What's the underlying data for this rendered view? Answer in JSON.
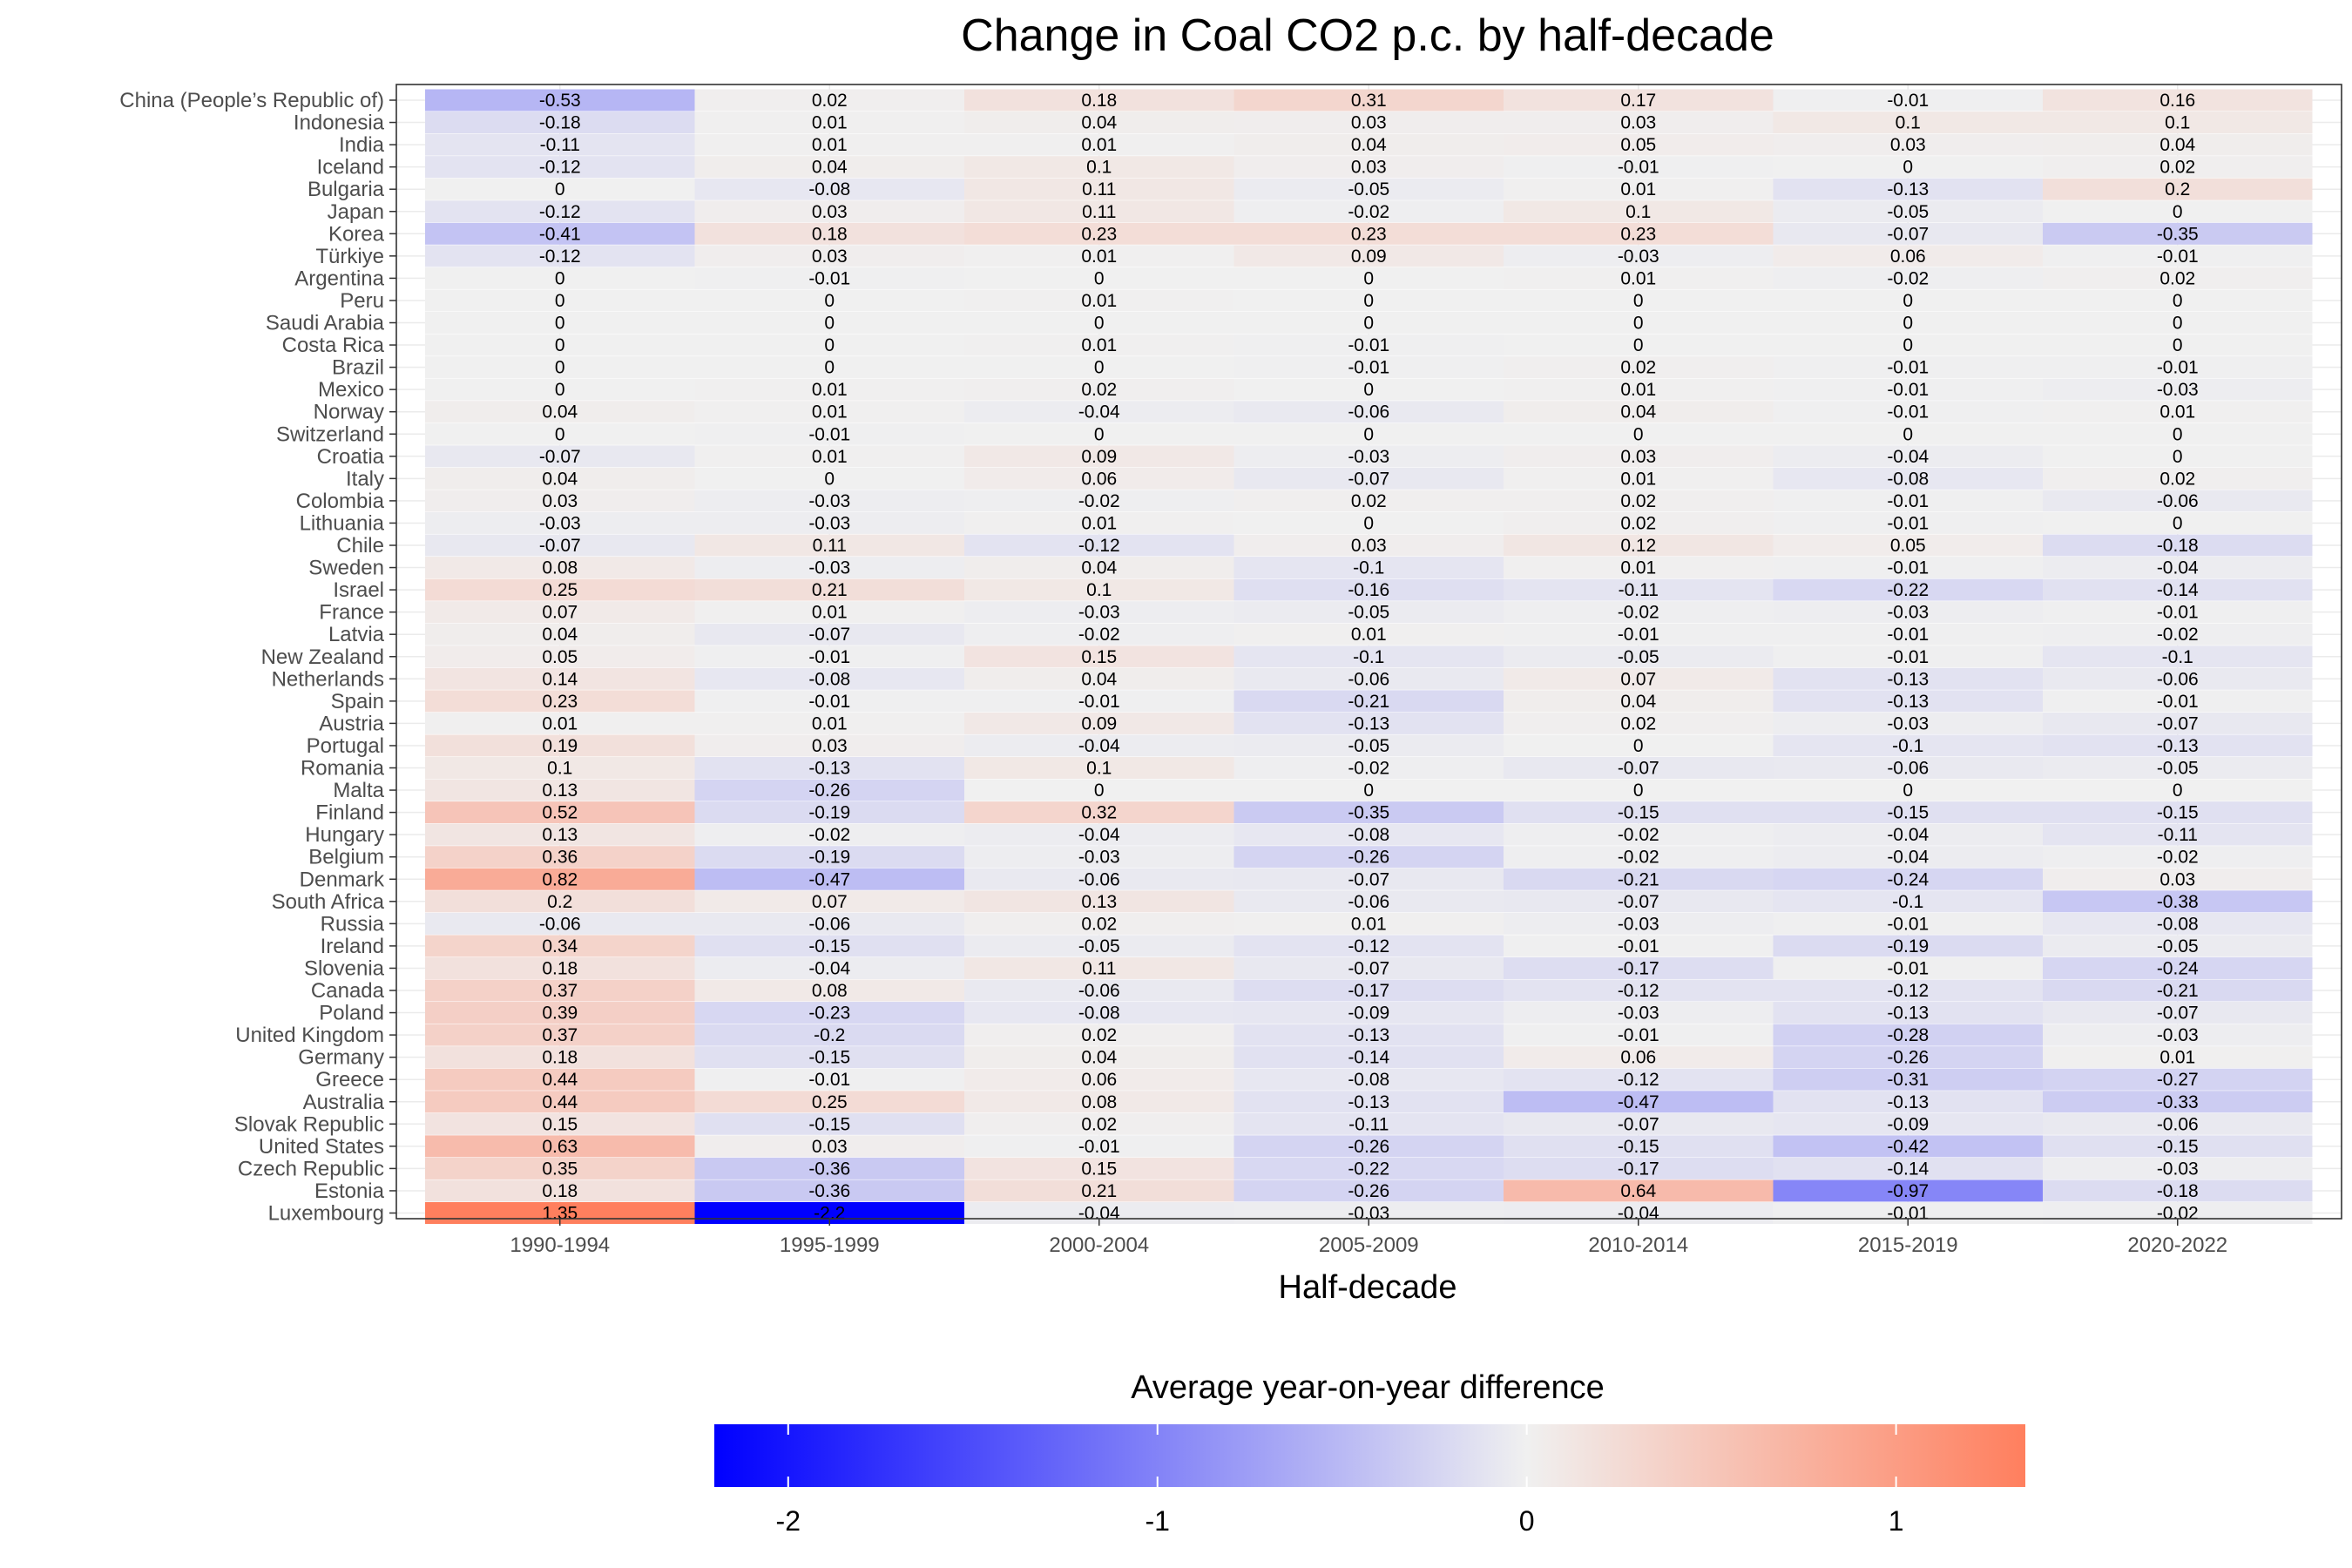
{
  "chart_data": {
    "type": "heatmap",
    "title": "Change in Coal CO2 p.c. by half-decade",
    "xlabel": "Half-decade",
    "ylabel": "",
    "legend_title": "Average year-on-year difference",
    "legend_ticks": [
      "-2",
      "-1",
      "0",
      "1"
    ],
    "legend_placement": "bottom",
    "color_scale": {
      "low": "#0000ff",
      "mid": "#f0f0f0",
      "high": "#ff7f5e",
      "min": -2.2,
      "max": 1.35
    },
    "x": [
      "1990-1994",
      "1995-1999",
      "2000-2004",
      "2005-2009",
      "2010-2014",
      "2015-2019",
      "2020-2022"
    ],
    "rows": [
      {
        "country": "China (People’s Republic of)",
        "values": [
          -0.53,
          0.02,
          0.18,
          0.31,
          0.17,
          -0.01,
          0.16
        ]
      },
      {
        "country": "Indonesia",
        "values": [
          -0.18,
          0.01,
          0.04,
          0.03,
          0.03,
          0.1,
          0.1
        ]
      },
      {
        "country": "India",
        "values": [
          -0.11,
          0.01,
          0.01,
          0.04,
          0.05,
          0.03,
          0.04
        ]
      },
      {
        "country": "Iceland",
        "values": [
          -0.12,
          0.04,
          0.1,
          0.03,
          -0.01,
          0,
          0.02
        ]
      },
      {
        "country": "Bulgaria",
        "values": [
          0,
          -0.08,
          0.11,
          -0.05,
          0.01,
          -0.13,
          0.2
        ]
      },
      {
        "country": "Japan",
        "values": [
          -0.12,
          0.03,
          0.11,
          -0.02,
          0.1,
          -0.05,
          0
        ]
      },
      {
        "country": "Korea",
        "values": [
          -0.41,
          0.18,
          0.23,
          0.23,
          0.23,
          -0.07,
          -0.35
        ]
      },
      {
        "country": "Türkiye",
        "values": [
          -0.12,
          0.03,
          0.01,
          0.09,
          -0.03,
          0.06,
          -0.01
        ]
      },
      {
        "country": "Argentina",
        "values": [
          0,
          -0.01,
          0,
          0,
          0.01,
          -0.02,
          0.02
        ]
      },
      {
        "country": "Peru",
        "values": [
          0,
          0,
          0.01,
          0,
          0,
          0,
          0
        ]
      },
      {
        "country": "Saudi Arabia",
        "values": [
          0,
          0,
          0,
          0,
          0,
          0,
          0
        ]
      },
      {
        "country": "Costa Rica",
        "values": [
          0,
          0,
          0.01,
          -0.01,
          0,
          0,
          0
        ]
      },
      {
        "country": "Brazil",
        "values": [
          0,
          0,
          0,
          -0.01,
          0.02,
          -0.01,
          -0.01
        ]
      },
      {
        "country": "Mexico",
        "values": [
          0,
          0.01,
          0.02,
          0,
          0.01,
          -0.01,
          -0.03
        ]
      },
      {
        "country": "Norway",
        "values": [
          0.04,
          0.01,
          -0.04,
          -0.06,
          0.04,
          -0.01,
          0.01
        ]
      },
      {
        "country": "Switzerland",
        "values": [
          0,
          -0.01,
          0,
          0,
          0,
          0,
          0
        ]
      },
      {
        "country": "Croatia",
        "values": [
          -0.07,
          0.01,
          0.09,
          -0.03,
          0.03,
          -0.04,
          0
        ]
      },
      {
        "country": "Italy",
        "values": [
          0.04,
          0,
          0.06,
          -0.07,
          0.01,
          -0.08,
          0.02
        ]
      },
      {
        "country": "Colombia",
        "values": [
          0.03,
          -0.03,
          -0.02,
          0.02,
          0.02,
          -0.01,
          -0.06
        ]
      },
      {
        "country": "Lithuania",
        "values": [
          -0.03,
          -0.03,
          0.01,
          0,
          0.02,
          -0.01,
          0
        ]
      },
      {
        "country": "Chile",
        "values": [
          -0.07,
          0.11,
          -0.12,
          0.03,
          0.12,
          0.05,
          -0.18
        ]
      },
      {
        "country": "Sweden",
        "values": [
          0.08,
          -0.03,
          0.04,
          -0.1,
          0.01,
          -0.01,
          -0.04
        ]
      },
      {
        "country": "Israel",
        "values": [
          0.25,
          0.21,
          0.1,
          -0.16,
          -0.11,
          -0.22,
          -0.14
        ]
      },
      {
        "country": "France",
        "values": [
          0.07,
          0.01,
          -0.03,
          -0.05,
          -0.02,
          -0.03,
          -0.01
        ]
      },
      {
        "country": "Latvia",
        "values": [
          0.04,
          -0.07,
          -0.02,
          0.01,
          -0.01,
          -0.01,
          -0.02
        ]
      },
      {
        "country": "New Zealand",
        "values": [
          0.05,
          -0.01,
          0.15,
          -0.1,
          -0.05,
          -0.01,
          -0.1
        ]
      },
      {
        "country": "Netherlands",
        "values": [
          0.14,
          -0.08,
          0.04,
          -0.06,
          0.07,
          -0.13,
          -0.06
        ]
      },
      {
        "country": "Spain",
        "values": [
          0.23,
          -0.01,
          -0.01,
          -0.21,
          0.04,
          -0.13,
          -0.01
        ]
      },
      {
        "country": "Austria",
        "values": [
          0.01,
          0.01,
          0.09,
          -0.13,
          0.02,
          -0.03,
          -0.07
        ]
      },
      {
        "country": "Portugal",
        "values": [
          0.19,
          0.03,
          -0.04,
          -0.05,
          0,
          -0.1,
          -0.13
        ]
      },
      {
        "country": "Romania",
        "values": [
          0.1,
          -0.13,
          0.1,
          -0.02,
          -0.07,
          -0.06,
          -0.05
        ]
      },
      {
        "country": "Malta",
        "values": [
          0.13,
          -0.26,
          0,
          0,
          0,
          0,
          0
        ]
      },
      {
        "country": "Finland",
        "values": [
          0.52,
          -0.19,
          0.32,
          -0.35,
          -0.15,
          -0.15,
          -0.15
        ]
      },
      {
        "country": "Hungary",
        "values": [
          0.13,
          -0.02,
          -0.04,
          -0.08,
          -0.02,
          -0.04,
          -0.11
        ]
      },
      {
        "country": "Belgium",
        "values": [
          0.36,
          -0.19,
          -0.03,
          -0.26,
          -0.02,
          -0.04,
          -0.02
        ]
      },
      {
        "country": "Denmark",
        "values": [
          0.82,
          -0.47,
          -0.06,
          -0.07,
          -0.21,
          -0.24,
          0.03
        ]
      },
      {
        "country": "South Africa",
        "values": [
          0.2,
          0.07,
          0.13,
          -0.06,
          -0.07,
          -0.1,
          -0.38
        ]
      },
      {
        "country": "Russia",
        "values": [
          -0.06,
          -0.06,
          0.02,
          0.01,
          -0.03,
          -0.01,
          -0.08
        ]
      },
      {
        "country": "Ireland",
        "values": [
          0.34,
          -0.15,
          -0.05,
          -0.12,
          -0.01,
          -0.19,
          -0.05
        ]
      },
      {
        "country": "Slovenia",
        "values": [
          0.18,
          -0.04,
          0.11,
          -0.07,
          -0.17,
          -0.01,
          -0.24
        ]
      },
      {
        "country": "Canada",
        "values": [
          0.37,
          0.08,
          -0.06,
          -0.17,
          -0.12,
          -0.12,
          -0.21
        ]
      },
      {
        "country": "Poland",
        "values": [
          0.39,
          -0.23,
          -0.08,
          -0.09,
          -0.03,
          -0.13,
          -0.07
        ]
      },
      {
        "country": "United Kingdom",
        "values": [
          0.37,
          -0.2,
          0.02,
          -0.13,
          -0.01,
          -0.28,
          -0.03
        ]
      },
      {
        "country": "Germany",
        "values": [
          0.18,
          -0.15,
          0.04,
          -0.14,
          0.06,
          -0.26,
          0.01
        ]
      },
      {
        "country": "Greece",
        "values": [
          0.44,
          -0.01,
          0.06,
          -0.08,
          -0.12,
          -0.31,
          -0.27
        ]
      },
      {
        "country": "Australia",
        "values": [
          0.44,
          0.25,
          0.08,
          -0.13,
          -0.47,
          -0.13,
          -0.33
        ]
      },
      {
        "country": "Slovak Republic",
        "values": [
          0.15,
          -0.15,
          0.02,
          -0.11,
          -0.07,
          -0.09,
          -0.06
        ]
      },
      {
        "country": "United States",
        "values": [
          0.63,
          0.03,
          -0.01,
          -0.26,
          -0.15,
          -0.42,
          -0.15
        ]
      },
      {
        "country": "Czech Republic",
        "values": [
          0.35,
          -0.36,
          0.15,
          -0.22,
          -0.17,
          -0.14,
          -0.03
        ]
      },
      {
        "country": "Estonia",
        "values": [
          0.18,
          -0.36,
          0.21,
          -0.26,
          0.64,
          -0.97,
          -0.18
        ]
      },
      {
        "country": "Luxembourg",
        "values": [
          1.35,
          -2.2,
          -0.04,
          -0.03,
          -0.04,
          -0.01,
          -0.02
        ]
      }
    ]
  }
}
